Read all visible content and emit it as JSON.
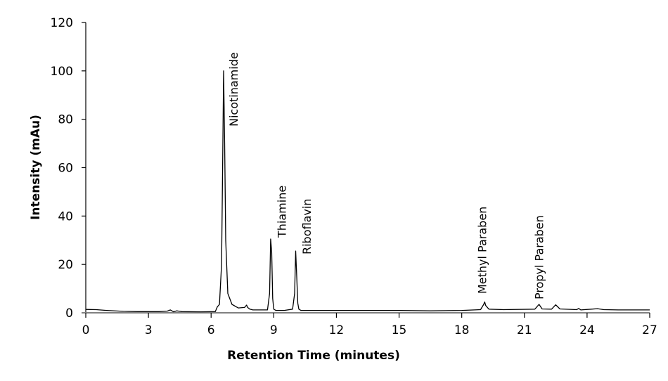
{
  "chart_data": {
    "type": "line",
    "title": "",
    "xlabel": "Retention Time (minutes)",
    "ylabel": "Intensity (mAu)",
    "xlim": [
      0,
      27
    ],
    "ylim": [
      0,
      120
    ],
    "xticks": [
      0,
      3,
      6,
      9,
      12,
      15,
      18,
      21,
      24,
      27
    ],
    "yticks": [
      0,
      20,
      40,
      60,
      80,
      100,
      120
    ],
    "grid": false,
    "legend": null,
    "line_color": "#000000",
    "series": [
      {
        "name": "Chromatogram",
        "x": [
          0,
          0.5,
          1.0,
          1.8,
          2.5,
          3.5,
          3.9,
          4.05,
          4.2,
          4.35,
          4.6,
          5.5,
          6.2,
          6.3,
          6.4,
          6.5,
          6.55,
          6.6,
          6.65,
          6.7,
          6.8,
          7.0,
          7.3,
          7.6,
          7.7,
          7.75,
          7.85,
          8.0,
          8.7,
          8.8,
          8.85,
          8.9,
          8.95,
          9.0,
          9.1,
          9.5,
          9.9,
          10.0,
          10.05,
          10.1,
          10.15,
          10.2,
          10.3,
          10.5,
          12,
          15,
          16.5,
          18,
          18.9,
          19.05,
          19.1,
          19.15,
          19.3,
          20,
          21.5,
          21.7,
          21.85,
          22.3,
          22.5,
          22.7,
          23.5,
          23.6,
          23.7,
          24.2,
          24.5,
          24.8,
          25.5,
          27
        ],
        "y": [
          1.4,
          1.3,
          1.0,
          0.6,
          0.5,
          0.5,
          0.7,
          1.2,
          0.4,
          0.8,
          0.5,
          0.4,
          0.5,
          2.5,
          3.5,
          20,
          60,
          100,
          70,
          30,
          8,
          3.5,
          2.0,
          2.2,
          3.2,
          2.2,
          1.5,
          1.2,
          1.2,
          8,
          30.5,
          25,
          6,
          1.5,
          1.0,
          1.0,
          1.5,
          8,
          25.5,
          15,
          4,
          1.5,
          1.0,
          1.0,
          1.0,
          1.0,
          0.8,
          1.0,
          1.3,
          3.5,
          4.5,
          3.0,
          1.5,
          1.3,
          1.5,
          3.5,
          1.6,
          1.5,
          3.3,
          1.6,
          1.3,
          1.8,
          1.2,
          1.5,
          1.7,
          1.3,
          1.2,
          1.2
        ]
      }
    ],
    "annotations": [
      {
        "text": "Nicotinamide",
        "x": 6.6,
        "y": 100
      },
      {
        "text": "Thiamine",
        "x": 8.9,
        "y": 30.5
      },
      {
        "text": "Riboflavin",
        "x": 10.1,
        "y": 25.5
      },
      {
        "text": "Methyl Paraben",
        "x": 19.1,
        "y": 4.5
      },
      {
        "text": "Propyl Paraben",
        "x": 21.7,
        "y": 3.5
      }
    ]
  },
  "labels": {
    "xlabel": "Retention Time (minutes)",
    "ylabel": "Intensity (mAu)"
  }
}
